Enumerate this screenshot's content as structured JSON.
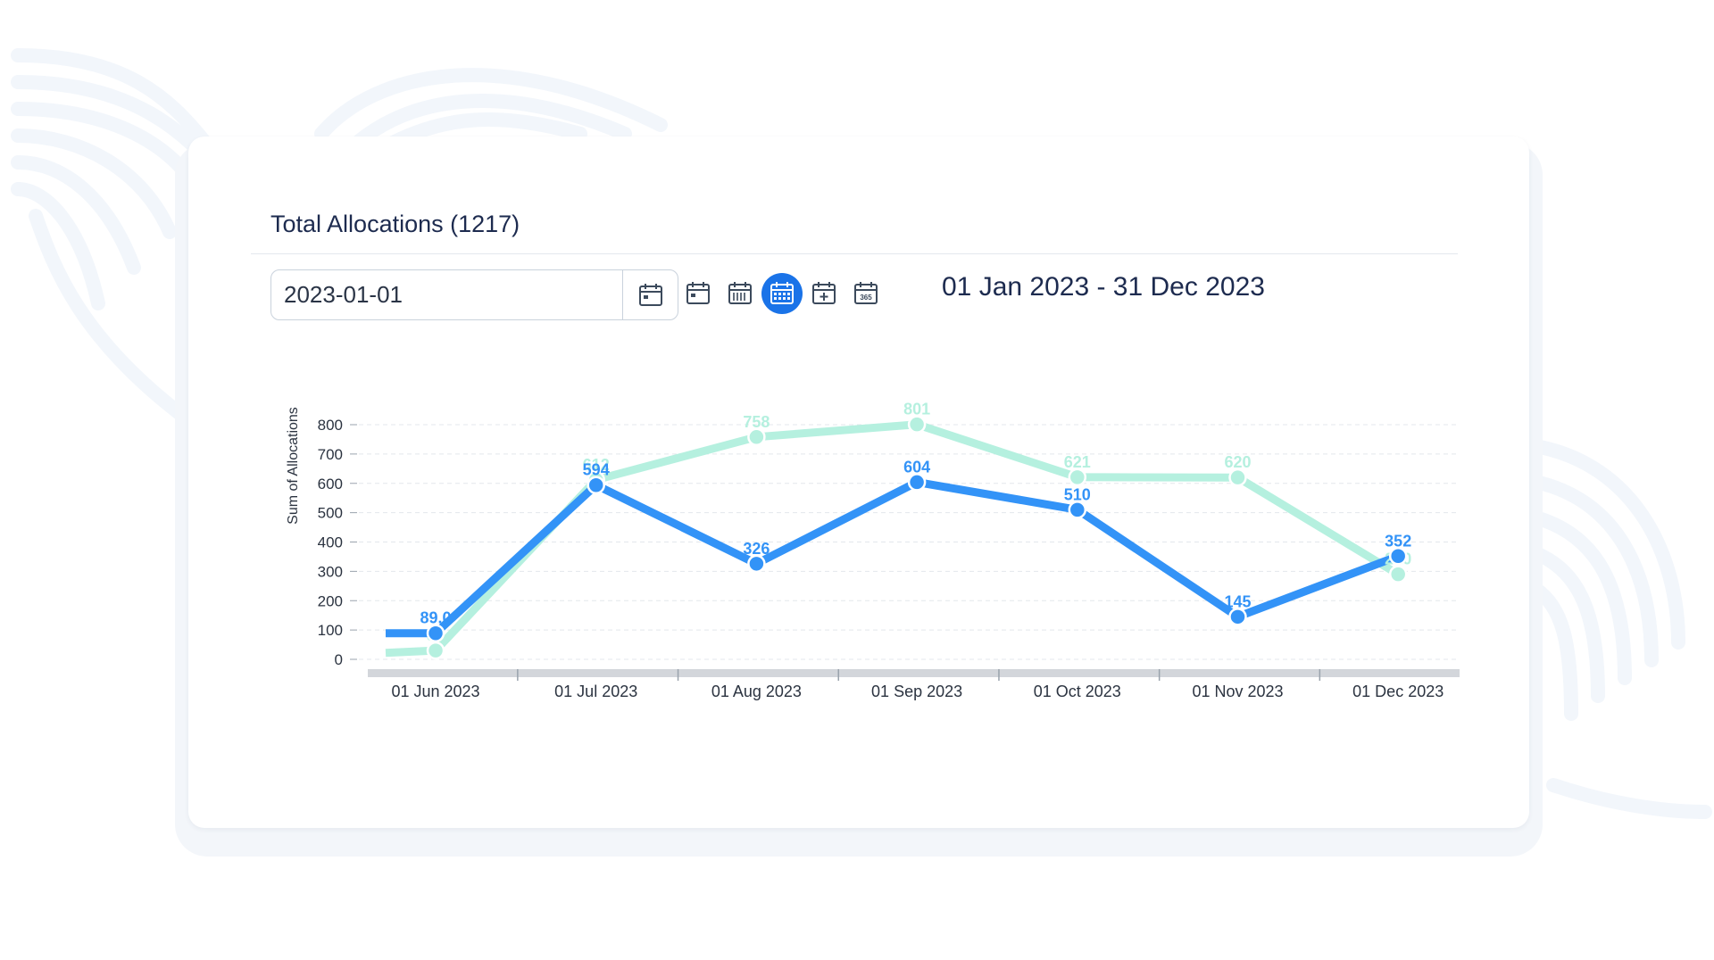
{
  "header": {
    "title": "Total Allocations (1217)"
  },
  "filter": {
    "date_value": "2023-01-01",
    "range_label": "01 Jan 2023 - 31 Dec 2023",
    "period_icons": [
      "calendar-day-icon",
      "calendar-week-icon",
      "calendar-month-icon",
      "calendar-add-icon",
      "calendar-year-icon"
    ],
    "active_period_index": 2,
    "year_icon_text": "365"
  },
  "colors": {
    "primary": "#3393f7",
    "secondary": "#b5f0df",
    "active_button": "#1a73e8",
    "title_text": "#1d2b4f"
  },
  "chart_data": {
    "type": "line",
    "ylabel": "Sum of Allocations",
    "xlabel": "",
    "ylim": [
      0,
      800
    ],
    "yticks": [
      0,
      100,
      200,
      300,
      400,
      500,
      600,
      700,
      800
    ],
    "grid": true,
    "categories": [
      "01 Jun 2023",
      "01 Jul 2023",
      "01 Aug 2023",
      "01 Sep 2023",
      "01 Oct 2023",
      "01 Nov 2023",
      "01 Dec 2023"
    ],
    "series": [
      {
        "color": "#b5f0df",
        "values": [
          30,
          612,
          758,
          801,
          621,
          620,
          290
        ],
        "labels": [
          "30",
          "612",
          "758",
          "801",
          "621",
          "620",
          "290"
        ],
        "start_value": 22
      },
      {
        "color": "#3393f7",
        "values": [
          89.0,
          594,
          326,
          604,
          510,
          145,
          352
        ],
        "labels": [
          "89.0",
          "594",
          "326",
          "604",
          "510",
          "145",
          "352"
        ],
        "start_value": 89.0
      }
    ]
  }
}
